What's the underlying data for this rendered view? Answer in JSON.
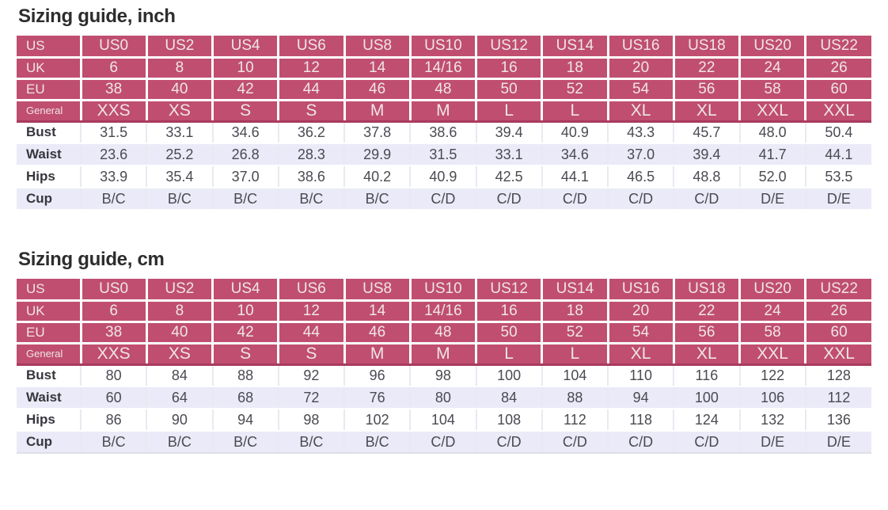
{
  "colors": {
    "header_bg": "#c04e70",
    "header_divider": "#a93a5e",
    "header_text": "#eee5e9",
    "row_alt_bg": "#eaeaf8",
    "body_text": "#4a4a52",
    "title_text": "#2d2d2d"
  },
  "tables": [
    {
      "id": "inch",
      "title": "Sizing guide, inch",
      "columns": [
        "US0",
        "US2",
        "US4",
        "US6",
        "US8",
        "US10",
        "US12",
        "US14",
        "US16",
        "US18",
        "US20",
        "US22"
      ],
      "header_rows": [
        {
          "label": "US",
          "small": false,
          "values": [
            "US0",
            "US2",
            "US4",
            "US6",
            "US8",
            "US10",
            "US12",
            "US14",
            "US16",
            "US18",
            "US20",
            "US22"
          ]
        },
        {
          "label": "UK",
          "small": false,
          "values": [
            "6",
            "8",
            "10",
            "12",
            "14",
            "14/16",
            "16",
            "18",
            "20",
            "22",
            "24",
            "26"
          ]
        },
        {
          "label": "EU",
          "small": false,
          "values": [
            "38",
            "40",
            "42",
            "44",
            "46",
            "48",
            "50",
            "52",
            "54",
            "56",
            "58",
            "60"
          ]
        },
        {
          "label": "General",
          "small": true,
          "values": [
            "XXS",
            "XS",
            "S",
            "S",
            "M",
            "M",
            "L",
            "L",
            "XL",
            "XL",
            "XXL",
            "XXL"
          ]
        }
      ],
      "body_rows": [
        {
          "label": "Bust",
          "values": [
            "31.5",
            "33.1",
            "34.6",
            "36.2",
            "37.8",
            "38.6",
            "39.4",
            "40.9",
            "43.3",
            "45.7",
            "48.0",
            "50.4"
          ]
        },
        {
          "label": "Waist",
          "values": [
            "23.6",
            "25.2",
            "26.8",
            "28.3",
            "29.9",
            "31.5",
            "33.1",
            "34.6",
            "37.0",
            "39.4",
            "41.7",
            "44.1"
          ]
        },
        {
          "label": "Hips",
          "values": [
            "33.9",
            "35.4",
            "37.0",
            "38.6",
            "40.2",
            "40.9",
            "42.5",
            "44.1",
            "46.5",
            "48.8",
            "52.0",
            "53.5"
          ]
        },
        {
          "label": "Cup",
          "values": [
            "B/C",
            "B/C",
            "B/C",
            "B/C",
            "B/C",
            "C/D",
            "C/D",
            "C/D",
            "C/D",
            "C/D",
            "D/E",
            "D/E"
          ]
        }
      ]
    },
    {
      "id": "cm",
      "title": "Sizing guide, cm",
      "columns": [
        "US0",
        "US2",
        "US4",
        "US6",
        "US8",
        "US10",
        "US12",
        "US14",
        "US16",
        "US18",
        "US20",
        "US22"
      ],
      "header_rows": [
        {
          "label": "US",
          "small": false,
          "values": [
            "US0",
            "US2",
            "US4",
            "US6",
            "US8",
            "US10",
            "US12",
            "US14",
            "US16",
            "US18",
            "US20",
            "US22"
          ]
        },
        {
          "label": "UK",
          "small": false,
          "values": [
            "6",
            "8",
            "10",
            "12",
            "14",
            "14/16",
            "16",
            "18",
            "20",
            "22",
            "24",
            "26"
          ]
        },
        {
          "label": "EU",
          "small": false,
          "values": [
            "38",
            "40",
            "42",
            "44",
            "46",
            "48",
            "50",
            "52",
            "54",
            "56",
            "58",
            "60"
          ]
        },
        {
          "label": "General",
          "small": true,
          "values": [
            "XXS",
            "XS",
            "S",
            "S",
            "M",
            "M",
            "L",
            "L",
            "XL",
            "XL",
            "XXL",
            "XXL"
          ]
        }
      ],
      "body_rows": [
        {
          "label": "Bust",
          "values": [
            "80",
            "84",
            "88",
            "92",
            "96",
            "98",
            "100",
            "104",
            "110",
            "116",
            "122",
            "128"
          ]
        },
        {
          "label": "Waist",
          "values": [
            "60",
            "64",
            "68",
            "72",
            "76",
            "80",
            "84",
            "88",
            "94",
            "100",
            "106",
            "112"
          ]
        },
        {
          "label": "Hips",
          "values": [
            "86",
            "90",
            "94",
            "98",
            "102",
            "104",
            "108",
            "112",
            "118",
            "124",
            "132",
            "136"
          ]
        },
        {
          "label": "Cup",
          "values": [
            "B/C",
            "B/C",
            "B/C",
            "B/C",
            "B/C",
            "C/D",
            "C/D",
            "C/D",
            "C/D",
            "C/D",
            "D/E",
            "D/E"
          ]
        }
      ]
    }
  ]
}
